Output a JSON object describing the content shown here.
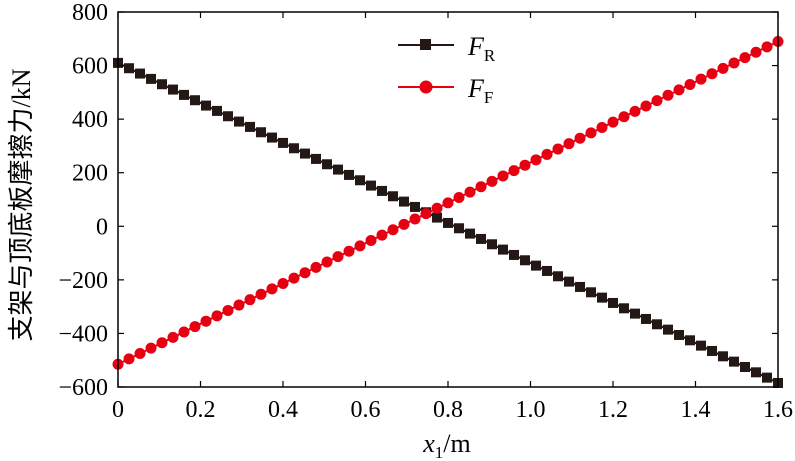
{
  "chart_data": {
    "type": "line",
    "title": "",
    "xlabel_main": "x",
    "xlabel_sub": "1",
    "xlabel_unit": "/m",
    "ylabel": "支架与顶底板摩擦力/kN",
    "xlim": [
      0,
      1.6
    ],
    "ylim": [
      -600,
      800
    ],
    "x_ticks": [
      "0",
      "0.2",
      "0.4",
      "0.6",
      "0.8",
      "1.0",
      "1.2",
      "1.4",
      "1.6"
    ],
    "x_tick_values": [
      0,
      0.2,
      0.4,
      0.6,
      0.8,
      1.0,
      1.2,
      1.4,
      1.6
    ],
    "y_ticks": [
      "800",
      "600",
      "400",
      "200",
      "0",
      "−200",
      "−400",
      "−600"
    ],
    "y_tick_values": [
      800,
      600,
      400,
      200,
      0,
      -200,
      -400,
      -600
    ],
    "grid": false,
    "legend_position": "top-center",
    "series": [
      {
        "name_main": "F",
        "name_sub": "R",
        "color": "#231815",
        "marker": "square",
        "x_start": 0,
        "x_end": 1.6,
        "num_points": 61,
        "y_start": 610,
        "y_end": -585
      },
      {
        "name_main": "F",
        "name_sub": "F",
        "color": "#e60012",
        "marker": "circle",
        "x_start": 0,
        "x_end": 1.6,
        "num_points": 61,
        "y_start": -515,
        "y_end": 690
      }
    ]
  }
}
